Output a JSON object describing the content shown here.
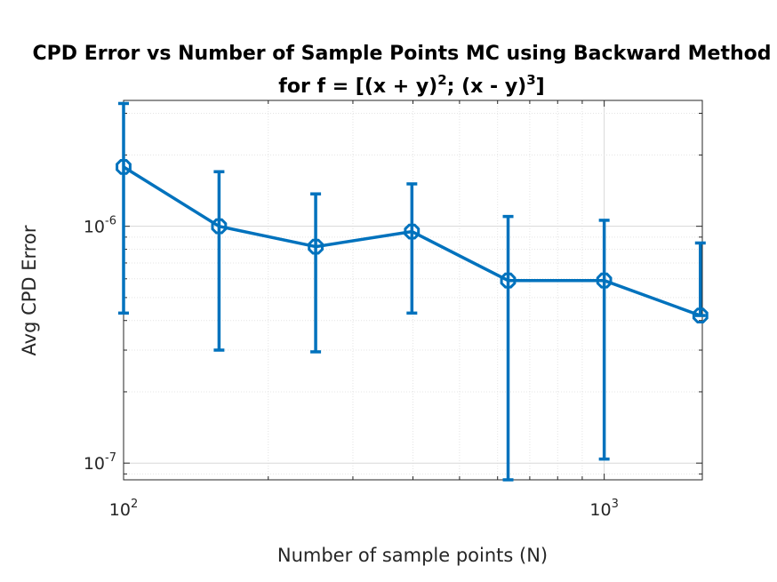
{
  "chart_data": {
    "type": "line",
    "title_line1": "CPD Error vs Number of Sample Points MC using Backward Method",
    "title_line2": "for f = [(x + y)",
    "title_sup1": "2",
    "title_mid": "; (x - y)",
    "title_sup2": "3",
    "title_end": "]",
    "xlabel": "Number of sample points (N)",
    "ylabel": "Avg CPD Error",
    "xscale": "log",
    "yscale": "log",
    "xlim": [
      100,
      1600
    ],
    "ylim": [
      8.5e-08,
      3.4e-06
    ],
    "grid": true,
    "x_ticks": [
      {
        "base": "10",
        "exp": "2",
        "value": 100
      },
      {
        "base": "10",
        "exp": "3",
        "value": 1000
      }
    ],
    "y_ticks": [
      {
        "base": "10",
        "exp": "-7",
        "value": 1e-07
      },
      {
        "base": "10",
        "exp": "-6",
        "value": 1e-06
      }
    ],
    "color": "#0072BD",
    "series": [
      {
        "x": [
          100,
          158,
          251,
          398,
          631,
          1000,
          1585
        ],
        "y": [
          1.78e-06,
          1e-06,
          8.2e-07,
          9.5e-07,
          5.9e-07,
          5.9e-07,
          4.2e-07
        ],
        "err_low": [
          4.3e-07,
          3e-07,
          2.95e-07,
          4.3e-07,
          8.5e-08,
          1.04e-07,
          4.2e-07
        ],
        "err_high": [
          3.3e-06,
          1.7e-06,
          1.37e-06,
          1.51e-06,
          1.1e-06,
          1.06e-06,
          8.5e-07
        ]
      }
    ]
  }
}
